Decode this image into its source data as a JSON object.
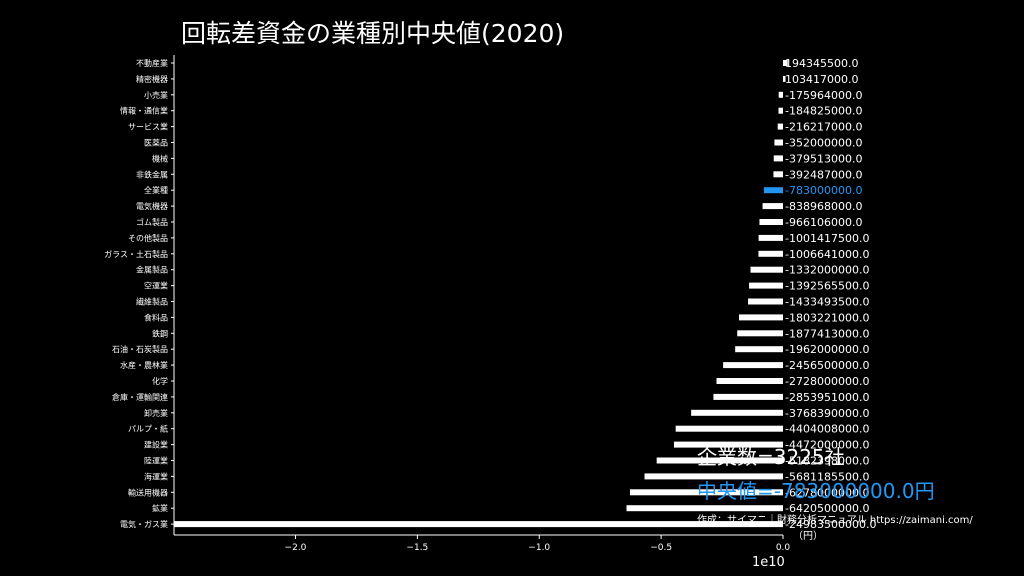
{
  "title": "回転差資金の業種別中央値(2020)",
  "annotations": {
    "count": "企業数=3225社",
    "median": "中央値=-783000000.0円",
    "credit": "作成：サイマニ｜財務分析マニュアル https://zaimani.com/",
    "unit": "（円）",
    "exponent": "1e10"
  },
  "colors": {
    "bar": "#ffffff",
    "highlight": "#2196f3",
    "background": "#000000"
  },
  "chart_data": {
    "type": "bar",
    "orientation": "horizontal",
    "highlight_category": "全業種",
    "xlim": [
      -24983500000,
      0
    ],
    "xticks": [
      -20000000000,
      -15000000000,
      -10000000000,
      -5000000000,
      0
    ],
    "xtick_labels": [
      "−2.0",
      "−1.5",
      "−1.0",
      "−0.5",
      "0.0"
    ],
    "categories": [
      "不動産業",
      "精密機器",
      "小売業",
      "情報・通信業",
      "サービス業",
      "医薬品",
      "機械",
      "非鉄金属",
      "全業種",
      "電気機器",
      "ゴム製品",
      "その他製品",
      "ガラス・土石製品",
      "金属製品",
      "空運業",
      "繊維製品",
      "食料品",
      "鉄鋼",
      "石油・石炭製品",
      "水産・農林業",
      "化学",
      "倉庫・運輸関連",
      "卸売業",
      "パルプ・紙",
      "建設業",
      "陸運業",
      "海運業",
      "輸送用機器",
      "鉱業",
      "電気・ガス業"
    ],
    "values": [
      194345500.0,
      103417000.0,
      -175964000.0,
      -184825000.0,
      -216217000.0,
      -352000000.0,
      -379513000.0,
      -392487000.0,
      -783000000.0,
      -838968000.0,
      -966106000.0,
      -1001417500.0,
      -1006641000.0,
      -1332000000.0,
      -1392565500.0,
      -1433493500.0,
      -1803221000.0,
      -1877413000.0,
      -1962000000.0,
      -2456500000.0,
      -2728000000.0,
      -2853951000.0,
      -3768390000.0,
      -4404008000.0,
      -4472000000.0,
      -5182398000.0,
      -5681185500.0,
      -6278000000.0,
      -6420500000.0,
      -24983500000.0
    ],
    "value_labels": [
      "194345500.0",
      "103417000.0",
      "-175964000.0",
      "-184825000.0",
      "-216217000.0",
      "-352000000.0",
      "-379513000.0",
      "-392487000.0",
      "-783000000.0",
      "-838968000.0",
      "-966106000.0",
      "-1001417500.0",
      "-1006641000.0",
      "-1332000000.0",
      "-1392565500.0",
      "-1433493500.0",
      "-1803221000.0",
      "-1877413000.0",
      "-1962000000.0",
      "-2456500000.0",
      "-2728000000.0",
      "-2853951000.0",
      "-3768390000.0",
      "-4404008000.0",
      "-4472000000.0",
      "-5182398000.0",
      "-5681185500.0",
      "-6278000000.0",
      "-6420500000.0",
      "-24983500000.0"
    ]
  }
}
